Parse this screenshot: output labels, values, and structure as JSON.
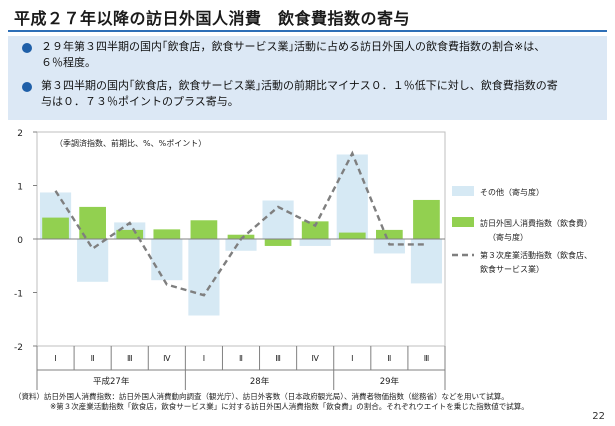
{
  "header": {
    "title": "平成２７年以降の訪日外国人消費　飲食費指数の寄与",
    "bullets": [
      "２９年第３四半期の国内｢飲食店，飲食サービス業｣活動に占める訪日外国人の飲食費指数の割合※は、",
      "６％程度。",
      "第３四半期の国内｢飲食店，飲食サービス業｣活動の前期比マイナス０．１％低下に対し、飲食費指数の寄",
      "与は０．７３％ポイントのプラス寄与。"
    ]
  },
  "chart_data": {
    "type": "bar",
    "unit_note": "（季調済指数、前期比、%、%ポイント）",
    "categories": [
      "Ⅰ",
      "Ⅱ",
      "Ⅲ",
      "Ⅳ",
      "Ⅰ",
      "Ⅱ",
      "Ⅲ",
      "Ⅳ",
      "Ⅰ",
      "Ⅱ",
      "Ⅲ"
    ],
    "year_groups": [
      {
        "label": "平成27年",
        "quarters": 4
      },
      {
        "label": "28年",
        "quarters": 4
      },
      {
        "label": "29年",
        "quarters": 3
      }
    ],
    "ylim": [
      -2,
      2
    ],
    "yticks": [
      "2",
      "1",
      "0",
      "-1",
      "-2"
    ],
    "series": [
      {
        "name": "その他（寄与度）",
        "kind": "bar",
        "color": "#d6e9f4",
        "values": [
          0.87,
          -0.8,
          0.31,
          -0.77,
          -1.43,
          -0.22,
          0.72,
          -0.13,
          1.58,
          -0.27,
          -0.83
        ]
      },
      {
        "name": "訪日外国人消費指数（飲食費）（寄与度）",
        "kind": "bar",
        "color": "#92d050",
        "values": [
          0.4,
          0.6,
          0.17,
          0.18,
          0.35,
          0.08,
          -0.13,
          0.33,
          0.12,
          0.17,
          0.73
        ]
      },
      {
        "name": "第３次産業活動指数（飲食店、飲食サービス業）",
        "kind": "line",
        "color": "#7f7f7f",
        "values": [
          0.9,
          -0.18,
          0.3,
          -0.85,
          -1.05,
          0.0,
          0.6,
          0.25,
          1.6,
          -0.1,
          -0.1
        ]
      }
    ],
    "legend": [
      {
        "label": "その他（寄与度）"
      },
      {
        "label": "訪日外国人消費指数（飲食費）",
        "label2": "（寄与度）"
      },
      {
        "label": "第３次産業活動指数（飲食店、",
        "label2": "飲食サービス業）"
      }
    ]
  },
  "notes": [
    "（資料）訪日外国人消費指数：訪日外国人消費動向調査（観光庁）、訪日外客数（日本政府観光局）、消費者物価指数（総務省）などを用いて試算。",
    "※第３次産業活動指数「飲食店，飲食サービス業」に対する訪日外国人消費指数「飲食費」の割合。それぞれウエイトを乗じた指数値で試算。"
  ],
  "page_number": "22"
}
